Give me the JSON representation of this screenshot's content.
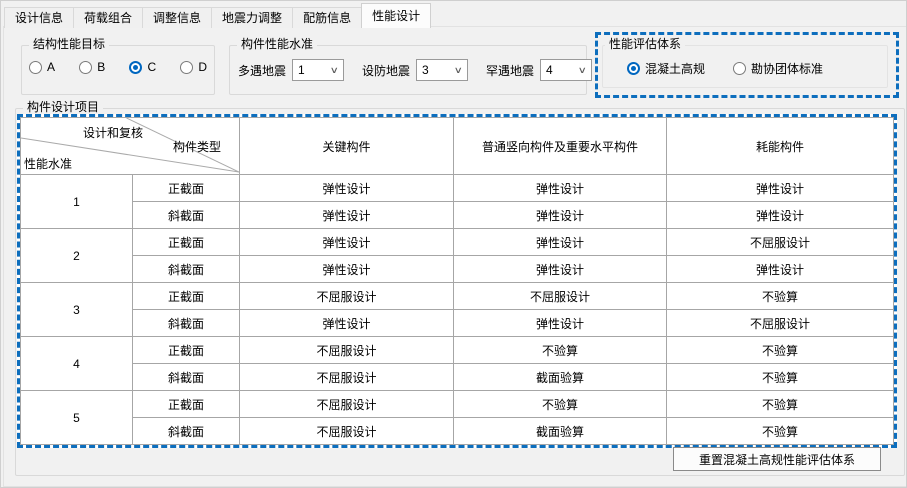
{
  "tabs": {
    "items": [
      {
        "label": "设计信息",
        "active": false
      },
      {
        "label": "荷载组合",
        "active": false
      },
      {
        "label": "调整信息",
        "active": false
      },
      {
        "label": "地震力调整",
        "active": false
      },
      {
        "label": "配筋信息",
        "active": false
      },
      {
        "label": "性能设计",
        "active": true
      }
    ]
  },
  "structural_target": {
    "title": "结构性能目标",
    "options": [
      {
        "label": "A",
        "selected": false
      },
      {
        "label": "B",
        "selected": false
      },
      {
        "label": "C",
        "selected": true
      },
      {
        "label": "D",
        "selected": false
      }
    ]
  },
  "member_level": {
    "title": "构件性能水准",
    "fields": [
      {
        "label": "多遇地震",
        "value": "1",
        "icon": "chevron-down-icon"
      },
      {
        "label": "设防地震",
        "value": "3",
        "icon": "chevron-down-icon"
      },
      {
        "label": "罕遇地震",
        "value": "4",
        "icon": "chevron-down-icon"
      }
    ]
  },
  "eval_system": {
    "title": "性能评估体系",
    "options": [
      {
        "label": "混凝土高规",
        "selected": true
      },
      {
        "label": "勘协团体标准",
        "selected": false
      }
    ]
  },
  "design_items": {
    "title": "构件设计项目",
    "table": {
      "corner": {
        "top": "设计和复核",
        "right": "构件类型",
        "bottom": "性能水准"
      },
      "columns": [
        "关键构件",
        "普通竖向构件及重要水平构件",
        "耗能构件"
      ],
      "rows": [
        {
          "level": "1",
          "sections": [
            {
              "type": "正截面",
              "values": [
                "弹性设计",
                "弹性设计",
                "弹性设计"
              ]
            },
            {
              "type": "斜截面",
              "values": [
                "弹性设计",
                "弹性设计",
                "弹性设计"
              ]
            }
          ]
        },
        {
          "level": "2",
          "sections": [
            {
              "type": "正截面",
              "values": [
                "弹性设计",
                "弹性设计",
                "不屈服设计"
              ]
            },
            {
              "type": "斜截面",
              "values": [
                "弹性设计",
                "弹性设计",
                "弹性设计"
              ]
            }
          ]
        },
        {
          "level": "3",
          "sections": [
            {
              "type": "正截面",
              "values": [
                "不屈服设计",
                "不屈服设计",
                "不验算"
              ]
            },
            {
              "type": "斜截面",
              "values": [
                "弹性设计",
                "弹性设计",
                "不屈服设计"
              ]
            }
          ]
        },
        {
          "level": "4",
          "sections": [
            {
              "type": "正截面",
              "values": [
                "不屈服设计",
                "不验算",
                "不验算"
              ]
            },
            {
              "type": "斜截面",
              "values": [
                "不屈服设计",
                "截面验算",
                "不验算"
              ]
            }
          ]
        },
        {
          "level": "5",
          "sections": [
            {
              "type": "正截面",
              "values": [
                "不屈服设计",
                "不验算",
                "不验算"
              ]
            },
            {
              "type": "斜截面",
              "values": [
                "不屈服设计",
                "截面验算",
                "不验算"
              ]
            }
          ]
        }
      ]
    },
    "reset_button": "重置混凝土高规性能评估体系"
  },
  "colors": {
    "accent_dashed": "#0d6ebd",
    "radio_selected": "#0067c0",
    "grid_line": "#a6a6a6",
    "background": "#f1f1f1"
  }
}
